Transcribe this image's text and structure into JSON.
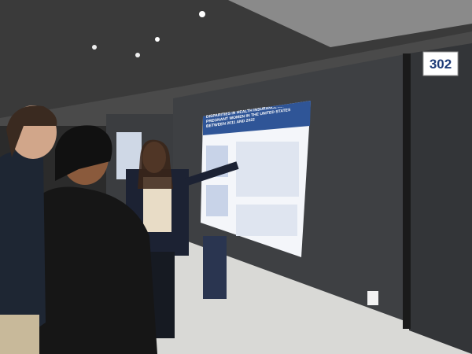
{
  "scene": {
    "booth_number": "302",
    "poster_title": "DISPARITIES IN HEALTH INSURANCE AMONG PREGNANT WOMEN IN THE UNITED STATES BETWEEN 2011 AND 2022"
  }
}
